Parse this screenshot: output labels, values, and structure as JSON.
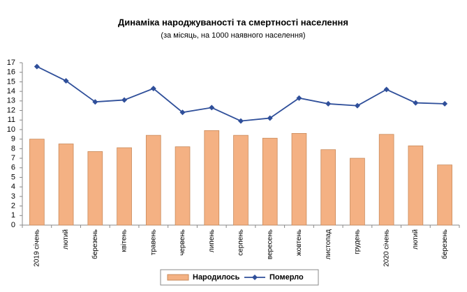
{
  "chart_data": {
    "type": "bar_line",
    "title": "Динаміка народжуваності та смертності населення",
    "subtitle": "(за місяць, на 1000 наявного населення)",
    "categories": [
      "2019 січень",
      "лютий",
      "березень",
      "квітень",
      "травень",
      "червень",
      "липень",
      "серпень",
      "вересень",
      "жовтень",
      "листопад",
      "грудень",
      "2020 січень",
      "лютий",
      "березень"
    ],
    "series": [
      {
        "name": "Народилось",
        "type": "bar",
        "color": "#f4b183",
        "values": [
          9.0,
          8.5,
          7.7,
          8.1,
          9.4,
          8.2,
          9.9,
          9.4,
          9.1,
          9.6,
          7.9,
          7.0,
          9.5,
          8.3,
          6.3
        ]
      },
      {
        "name": "Померло",
        "type": "line",
        "color": "#2f4f9a",
        "values": [
          16.6,
          15.1,
          12.9,
          13.1,
          14.3,
          11.8,
          12.3,
          10.9,
          11.2,
          13.3,
          12.7,
          12.5,
          14.2,
          12.8,
          12.7
        ]
      }
    ],
    "ylim": [
      0,
      17
    ],
    "yticks": [
      0,
      1,
      2,
      3,
      4,
      5,
      6,
      7,
      8,
      9,
      10,
      11,
      12,
      13,
      14,
      15,
      16,
      17
    ],
    "grid": false,
    "legend": "bottom"
  }
}
